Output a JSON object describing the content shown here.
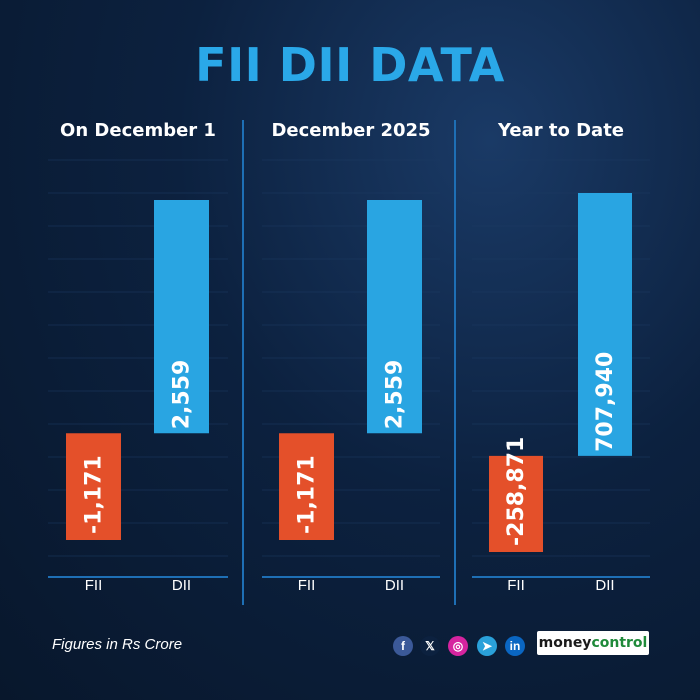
{
  "title": "FII DII DATA",
  "footer": {
    "note": "Figures in Rs Crore"
  },
  "social": [
    {
      "icon": "facebook-icon",
      "glyph": "f",
      "color": "#3b5998"
    },
    {
      "icon": "x-icon",
      "glyph": "𝕏",
      "color": "#0c213f"
    },
    {
      "icon": "instagram-icon",
      "glyph": "◎",
      "color": "#d6249f"
    },
    {
      "icon": "telegram-icon",
      "glyph": "➤",
      "color": "#2aa1da"
    },
    {
      "icon": "linkedin-icon",
      "glyph": "in",
      "color": "#0a66c2"
    }
  ],
  "brand": {
    "part1": "money",
    "part2": "control"
  },
  "colors": {
    "fii": "#e4502a",
    "dii": "#29a5e2",
    "title": "#2aa8e8",
    "baseline": "#1e6fb5"
  },
  "chart_data": [
    {
      "type": "bar",
      "title": "On December 1",
      "categories": [
        "FII",
        "DII"
      ],
      "values": [
        -1171,
        2559
      ],
      "labels": [
        "-1,171",
        "2,559"
      ]
    },
    {
      "type": "bar",
      "title": "December 2025",
      "categories": [
        "FII",
        "DII"
      ],
      "values": [
        -1171,
        2559
      ],
      "labels": [
        "-1,171",
        "2,559"
      ]
    },
    {
      "type": "bar",
      "title": "Year to Date",
      "categories": [
        "FII",
        "DII"
      ],
      "values": [
        -258871,
        707940
      ],
      "labels": [
        "-258,871",
        "707,940"
      ]
    }
  ]
}
